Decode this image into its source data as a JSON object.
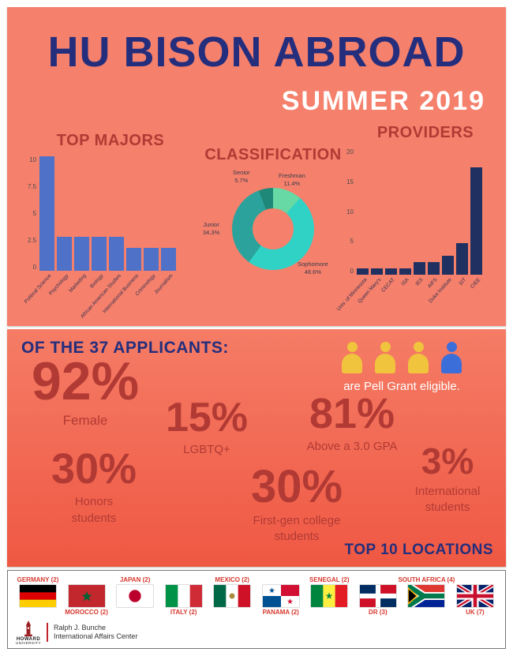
{
  "colors": {
    "navy": "#242e7c",
    "dark_red": "#b23a34",
    "coral": "#f5806c",
    "mid_red_top": "#f57c66",
    "mid_red_bottom": "#ef5843",
    "bar_blue": "#4f71c8",
    "bar_navy": "#203061",
    "person_yellow": "#f0c43c",
    "person_blue": "#3c6ed9",
    "flag_label": "#d6392e",
    "white": "#ffffff"
  },
  "header": {
    "title": "HU BISON ABROAD",
    "subtitle": "SUMMER 2019"
  },
  "chart_data": [
    {
      "type": "bar",
      "title": "TOP MAJORS",
      "categories": [
        "Political Science",
        "Psychology",
        "Marketing",
        "Biology",
        "African American Studies",
        "International Business",
        "Criminology",
        "Journalism"
      ],
      "values": [
        10,
        3,
        3,
        3,
        3,
        2,
        2,
        2
      ],
      "yticks": [
        0,
        2.5,
        5,
        7.5,
        10
      ],
      "ylim": [
        0,
        10
      ],
      "xlabel": "",
      "ylabel": "",
      "bar_color_key": "bar_blue"
    },
    {
      "type": "pie",
      "title": "CLASSIFICATION",
      "slices": [
        {
          "name": "Senior",
          "value": 5.7,
          "pct": "5.7%",
          "color": "#208878"
        },
        {
          "name": "Freshman",
          "value": 11.4,
          "pct": "11.4%",
          "color": "#66d9a4"
        },
        {
          "name": "Junior",
          "value": 34.3,
          "pct": "34.3%",
          "color": "#2ba39c"
        },
        {
          "name": "Sophomore",
          "value": 48.6,
          "pct": "48.6%",
          "color": "#30d2c5"
        }
      ],
      "hole": 0.5
    },
    {
      "type": "bar",
      "title": "PROVIDERS",
      "categories": [
        "Univ. of Minnesota",
        "Queen Mary's",
        "CECAT",
        "ISA",
        "IES",
        "AIFS",
        "Duke Institute",
        "SIT",
        "CIEE"
      ],
      "values": [
        1,
        1,
        1,
        1,
        2,
        2,
        3,
        5,
        17
      ],
      "yticks": [
        0,
        5,
        10,
        15,
        20
      ],
      "ylim": [
        0,
        20
      ],
      "xlabel": "",
      "ylabel": "",
      "bar_color_key": "bar_navy"
    }
  ],
  "stats": {
    "heading": "OF THE 37 APPLICANTS:",
    "items": [
      {
        "id": "female",
        "value": "92%",
        "label": "Female"
      },
      {
        "id": "lgbtq",
        "value": "15%",
        "label": "LGBTQ+"
      },
      {
        "id": "gpa",
        "value": "81%",
        "label": "Above a 3.0 GPA"
      },
      {
        "id": "honors",
        "value": "30%",
        "label": "Honors students"
      },
      {
        "id": "firstgen",
        "value": "30%",
        "label": "First-gen college students"
      },
      {
        "id": "international",
        "value": "3%",
        "label": "International students"
      }
    ],
    "pell_text": "are Pell Grant eligible.",
    "pell_icons": [
      "yellow",
      "yellow",
      "yellow",
      "blue"
    ]
  },
  "locations": {
    "heading": "TOP 10 LOCATIONS",
    "flags": [
      {
        "label": "GERMANY (2)",
        "code": "de",
        "label_pos": "top"
      },
      {
        "label": "MOROCCO (2)",
        "code": "ma",
        "label_pos": "bottom"
      },
      {
        "label": "JAPAN (2)",
        "code": "jp",
        "label_pos": "top"
      },
      {
        "label": "ITALY (2)",
        "code": "it",
        "label_pos": "bottom"
      },
      {
        "label": "MEXICO (2)",
        "code": "mx",
        "label_pos": "top"
      },
      {
        "label": "PANAMA (2)",
        "code": "pa",
        "label_pos": "bottom"
      },
      {
        "label": "SENEGAL (2)",
        "code": "sn",
        "label_pos": "top"
      },
      {
        "label": "DR (3)",
        "code": "do",
        "label_pos": "bottom"
      },
      {
        "label": "SOUTH AFRICA (4)",
        "code": "za",
        "label_pos": "top"
      },
      {
        "label": "UK (7)",
        "code": "gb",
        "label_pos": "bottom"
      }
    ]
  },
  "footer": {
    "logo_line1": "HOWARD",
    "logo_line2": "UNIVERSITY",
    "org_line1": "Ralph J. Bunche",
    "org_line2": "International Affairs Center"
  }
}
